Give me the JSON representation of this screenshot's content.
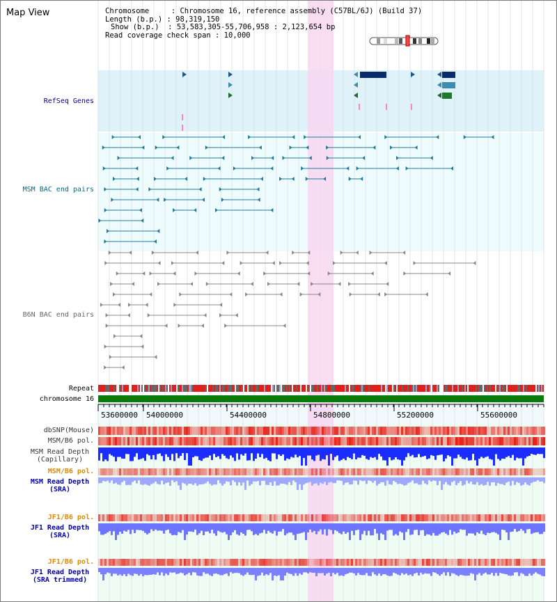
{
  "title": "Map View",
  "info": {
    "line1": "Chromosome     : Chromosome 16, reference assembly (C57BL/6J) (Build 37)",
    "line2": "Length (b.p.) : 98,319,150",
    "line3": "Show (b.p.)  : 53,583,305-55,706,958 : 2,123,654 bp",
    "line4": "Read coverage check span : 10,000"
  },
  "tracks": {
    "refseq": "RefSeq Genes",
    "msm_bac": "MSM BAC end pairs",
    "b6n_bac": "B6N BAC end pairs",
    "repeat": "Repeat",
    "chromosome": "chromosome 16",
    "dbsnp": "dbSNP(Mouse)",
    "msm_b6_pol": "MSM/B6 pol.",
    "msm_depth_cap_1": "MSM Read Depth",
    "msm_depth_cap_2": "(Capillary)",
    "msm_b6_pol2": "MSM/B6 pol.",
    "msm_depth_sra_1": "MSM Read Depth",
    "msm_depth_sra_2": "(SRA)",
    "jf1_b6_pol": "JF1/B6 pol.",
    "jf1_depth_sra_1": "JF1 Read Depth",
    "jf1_depth_sra_2": "(SRA)",
    "jf1_b6_pol2": "JF1/B6 pol.",
    "jf1_depth_trim_1": "JF1 Read Depth",
    "jf1_depth_trim_2": "(SRA trimmed)"
  },
  "axis": {
    "ticks": [
      "53600000",
      "54000000",
      "54400000",
      "54800000",
      "55200000",
      "55600000"
    ]
  },
  "colors": {
    "refseq_label": "#00008b",
    "msm_label": "#006b8a",
    "b6n_label": "#666666",
    "orange_label": "#e08a00",
    "blue_label": "#0000aa",
    "highlight": "#f7d7f1"
  }
}
